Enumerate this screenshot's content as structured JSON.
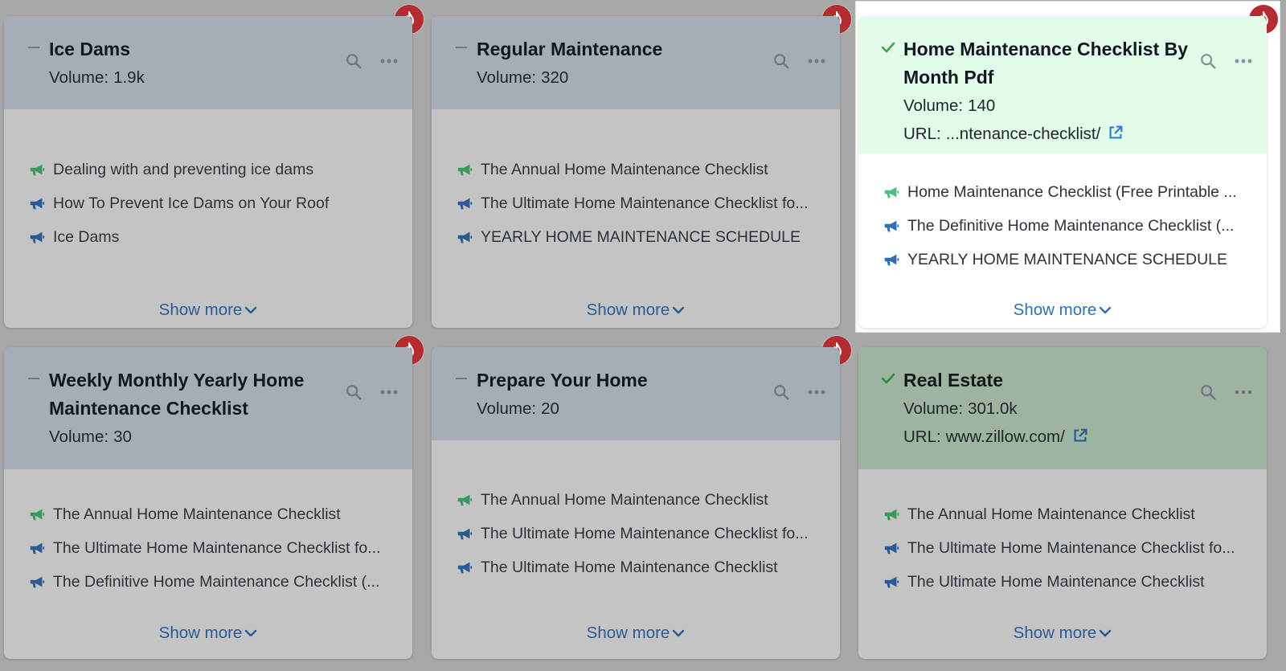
{
  "labels": {
    "volume": "Volume:",
    "url": "URL:",
    "show_more": "Show more"
  },
  "colors": {
    "fire": "#b52c30",
    "link": "#2a5b94",
    "check": "#3aa653",
    "green_icon": "#3a9a5c",
    "blue_icon": "#2a5b94"
  },
  "cards": [
    {
      "title": "Ice Dams",
      "volume": "1.9k",
      "status": "dash-icon",
      "articles": [
        {
          "text": "Dealing with and preventing ice dams",
          "icon": "megaphone-green"
        },
        {
          "text": "How To Prevent Ice Dams on Your Roof",
          "icon": "megaphone-blue"
        },
        {
          "text": "Ice Dams",
          "icon": "megaphone-blue"
        }
      ]
    },
    {
      "title": "Regular Maintenance",
      "volume": "320",
      "status": "dash-icon",
      "articles": [
        {
          "text": "The Annual Home Maintenance Checklist",
          "icon": "megaphone-green"
        },
        {
          "text": "The Ultimate Home Maintenance Checklist fo...",
          "icon": "megaphone-blue"
        },
        {
          "text": "YEARLY HOME MAINTENANCE SCHEDULE",
          "icon": "megaphone-blue"
        }
      ]
    },
    {
      "title": "Home Maintenance Checklist By Month Pdf",
      "volume": "140",
      "url": "...ntenance-checklist/",
      "status": "check-icon",
      "articles": [
        {
          "text": "Home Maintenance Checklist (Free Printable ...",
          "icon": "megaphone-green"
        },
        {
          "text": "The Definitive Home Maintenance Checklist (...",
          "icon": "megaphone-blue"
        },
        {
          "text": "YEARLY HOME MAINTENANCE SCHEDULE",
          "icon": "megaphone-blue"
        }
      ]
    },
    {
      "title": "Weekly Monthly Yearly Home Maintenance Checklist",
      "volume": "30",
      "status": "dash-icon",
      "articles": [
        {
          "text": "The Annual Home Maintenance Checklist",
          "icon": "megaphone-green"
        },
        {
          "text": "The Ultimate Home Maintenance Checklist fo...",
          "icon": "megaphone-blue"
        },
        {
          "text": "The Definitive Home Maintenance Checklist (...",
          "icon": "megaphone-blue"
        }
      ]
    },
    {
      "title": "Prepare Your Home",
      "volume": "20",
      "status": "dash-icon",
      "articles": [
        {
          "text": "The Annual Home Maintenance Checklist",
          "icon": "megaphone-green"
        },
        {
          "text": "The Ultimate Home Maintenance Checklist fo...",
          "icon": "megaphone-blue"
        },
        {
          "text": "The Ultimate Home Maintenance Checklist",
          "icon": "megaphone-blue"
        }
      ]
    },
    {
      "title": "Real Estate",
      "volume": "301.0k",
      "url": "www.zillow.com/",
      "status": "check-icon",
      "articles": [
        {
          "text": "The Annual Home Maintenance Checklist",
          "icon": "megaphone-green"
        },
        {
          "text": "The Ultimate Home Maintenance Checklist fo...",
          "icon": "megaphone-blue"
        },
        {
          "text": "The Ultimate Home Maintenance Checklist",
          "icon": "megaphone-blue"
        }
      ]
    }
  ]
}
